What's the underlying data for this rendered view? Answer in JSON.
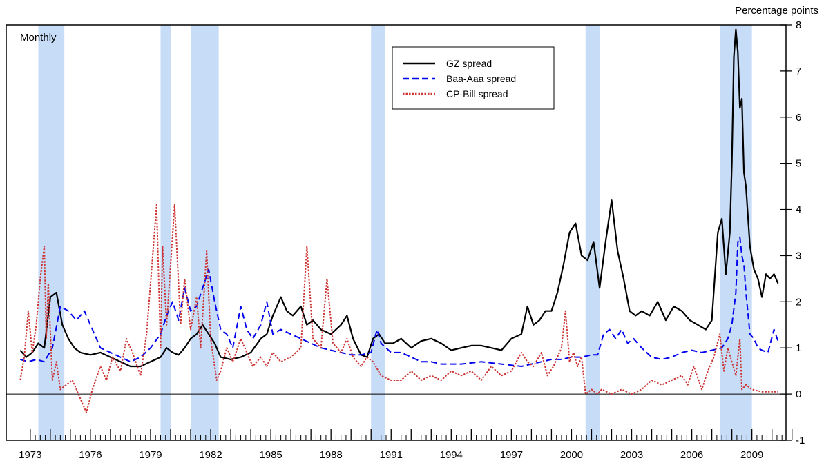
{
  "chart_data": {
    "type": "line",
    "frequency_label": "Monthly",
    "ylabel": "Percentage points",
    "xlim": [
      1972.3,
      2011.2
    ],
    "ylim": [
      -1,
      8
    ],
    "y_ticks": [
      -1,
      0,
      1,
      2,
      3,
      4,
      5,
      6,
      7,
      8
    ],
    "x_tick_labels": [
      "1973",
      "1976",
      "1979",
      "1982",
      "1985",
      "1988",
      "1991",
      "1994",
      "1997",
      "2000",
      "2003",
      "2006",
      "2009"
    ],
    "recessions": [
      [
        1973.9,
        1975.2
      ],
      [
        1980.0,
        1980.5
      ],
      [
        1981.5,
        1982.9
      ],
      [
        1990.5,
        1991.2
      ],
      [
        2001.2,
        2001.9
      ],
      [
        2007.9,
        2009.5
      ]
    ],
    "grid": false,
    "legend_position": "top-right",
    "series": [
      {
        "name": "GZ spread",
        "color": "#000000",
        "style": "solid",
        "x": [
          1973.0,
          1973.3,
          1973.6,
          1973.9,
          1974.2,
          1974.5,
          1974.8,
          1975.1,
          1975.4,
          1975.7,
          1976.0,
          1976.5,
          1977.0,
          1977.5,
          1978.0,
          1978.5,
          1979.0,
          1979.5,
          1980.0,
          1980.3,
          1980.6,
          1980.9,
          1981.2,
          1981.5,
          1981.8,
          1982.1,
          1982.4,
          1982.7,
          1983.0,
          1983.5,
          1984.0,
          1984.5,
          1985.0,
          1985.3,
          1985.6,
          1986.0,
          1986.3,
          1986.6,
          1987.0,
          1987.3,
          1987.6,
          1988.0,
          1988.5,
          1989.0,
          1989.3,
          1989.6,
          1990.0,
          1990.3,
          1990.6,
          1990.9,
          1991.2,
          1991.6,
          1992.0,
          1992.5,
          1993.0,
          1993.5,
          1994.0,
          1994.5,
          1995.0,
          1995.5,
          1996.0,
          1996.5,
          1997.0,
          1997.5,
          1998.0,
          1998.3,
          1998.6,
          1998.9,
          1999.2,
          1999.5,
          1999.8,
          2000.1,
          2000.4,
          2000.7,
          2001.0,
          2001.3,
          2001.6,
          2001.9,
          2002.2,
          2002.5,
          2002.8,
          2003.1,
          2003.4,
          2003.7,
          2004.0,
          2004.4,
          2004.8,
          2005.2,
          2005.6,
          2006.0,
          2006.4,
          2006.8,
          2007.2,
          2007.5,
          2007.8,
          2008.0,
          2008.2,
          2008.4,
          2008.5,
          2008.6,
          2008.7,
          2008.8,
          2008.9,
          2009.0,
          2009.1,
          2009.2,
          2009.4,
          2009.6,
          2009.8,
          2010.0,
          2010.2,
          2010.4,
          2010.6,
          2010.8
        ],
        "y": [
          0.95,
          0.8,
          0.9,
          1.1,
          1.0,
          2.1,
          2.2,
          1.5,
          1.2,
          1.0,
          0.9,
          0.85,
          0.9,
          0.8,
          0.7,
          0.6,
          0.6,
          0.7,
          0.8,
          1.0,
          0.9,
          0.85,
          1.0,
          1.2,
          1.3,
          1.5,
          1.3,
          1.1,
          0.8,
          0.75,
          0.8,
          0.9,
          1.2,
          1.3,
          1.7,
          2.1,
          1.8,
          1.7,
          1.9,
          1.5,
          1.6,
          1.4,
          1.3,
          1.5,
          1.7,
          1.2,
          0.85,
          0.8,
          1.2,
          1.3,
          1.1,
          1.1,
          1.2,
          1.0,
          1.15,
          1.2,
          1.1,
          0.95,
          1.0,
          1.05,
          1.05,
          1.0,
          0.95,
          1.2,
          1.3,
          1.9,
          1.5,
          1.6,
          1.8,
          1.8,
          2.2,
          2.8,
          3.5,
          3.7,
          3.0,
          2.9,
          3.3,
          2.3,
          3.3,
          4.2,
          3.1,
          2.5,
          1.8,
          1.7,
          1.8,
          1.7,
          2.0,
          1.6,
          1.9,
          1.8,
          1.6,
          1.5,
          1.4,
          1.6,
          3.5,
          3.8,
          2.6,
          3.5,
          5.0,
          7.3,
          7.9,
          7.4,
          6.2,
          6.4,
          4.8,
          4.5,
          3.2,
          2.7,
          2.5,
          2.1,
          2.6,
          2.5,
          2.6,
          2.4
        ]
      },
      {
        "name": "Baa-Aaa spread",
        "color": "#0000ee",
        "style": "dashed",
        "x": [
          1973.0,
          1973.4,
          1973.8,
          1974.2,
          1974.6,
          1975.0,
          1975.4,
          1975.8,
          1976.2,
          1976.6,
          1977.0,
          1977.5,
          1978.0,
          1978.5,
          1979.0,
          1979.5,
          1980.0,
          1980.3,
          1980.6,
          1980.9,
          1981.2,
          1981.5,
          1981.8,
          1982.1,
          1982.4,
          1982.7,
          1983.0,
          1983.3,
          1983.6,
          1984.0,
          1984.3,
          1984.6,
          1985.0,
          1985.3,
          1985.6,
          1986.0,
          1986.5,
          1987.0,
          1987.5,
          1988.0,
          1988.5,
          1989.0,
          1989.5,
          1990.0,
          1990.5,
          1990.8,
          1991.0,
          1991.5,
          1992.0,
          1992.5,
          1993.0,
          1993.5,
          1994.0,
          1995.0,
          1996.0,
          1997.0,
          1998.0,
          1998.5,
          1999.0,
          1999.5,
          2000.0,
          2000.5,
          2001.0,
          2001.5,
          2001.8,
          2002.1,
          2002.4,
          2002.7,
          2003.0,
          2003.3,
          2003.6,
          2004.0,
          2004.5,
          2005.0,
          2005.5,
          2006.0,
          2006.5,
          2007.0,
          2007.5,
          2008.0,
          2008.3,
          2008.5,
          2008.7,
          2008.8,
          2008.9,
          2009.0,
          2009.1,
          2009.2,
          2009.4,
          2009.6,
          2009.8,
          2010.0,
          2010.3,
          2010.6,
          2010.8
        ],
        "y": [
          0.75,
          0.7,
          0.75,
          0.7,
          1.0,
          1.9,
          1.8,
          1.6,
          1.8,
          1.4,
          1.0,
          0.9,
          0.8,
          0.7,
          0.8,
          1.0,
          1.3,
          1.7,
          2.0,
          1.6,
          2.3,
          1.8,
          1.9,
          2.3,
          2.7,
          2.0,
          1.4,
          1.3,
          1.0,
          1.9,
          1.4,
          1.2,
          1.5,
          2.0,
          1.3,
          1.4,
          1.3,
          1.2,
          1.1,
          1.0,
          0.95,
          0.9,
          0.85,
          0.85,
          0.9,
          1.4,
          1.1,
          0.9,
          0.9,
          0.8,
          0.7,
          0.7,
          0.65,
          0.65,
          0.7,
          0.65,
          0.6,
          0.65,
          0.7,
          0.75,
          0.75,
          0.8,
          0.8,
          0.85,
          0.85,
          1.3,
          1.4,
          1.2,
          1.4,
          1.1,
          1.2,
          1.0,
          0.8,
          0.75,
          0.8,
          0.9,
          0.95,
          0.9,
          0.95,
          1.0,
          1.2,
          1.5,
          2.2,
          3.3,
          3.4,
          3.0,
          2.8,
          2.2,
          1.3,
          1.2,
          1.0,
          0.95,
          0.9,
          1.4,
          1.15
        ]
      },
      {
        "name": "CP-Bill spread",
        "color": "#cc3333",
        "style": "dotted",
        "x": [
          1973.0,
          1973.2,
          1973.4,
          1973.6,
          1973.8,
          1974.0,
          1974.2,
          1974.3,
          1974.4,
          1974.6,
          1974.8,
          1975.0,
          1975.3,
          1975.6,
          1976.0,
          1976.3,
          1976.6,
          1977.0,
          1977.3,
          1977.6,
          1978.0,
          1978.3,
          1978.6,
          1979.0,
          1979.3,
          1979.5,
          1979.8,
          1980.0,
          1980.1,
          1980.3,
          1980.5,
          1980.7,
          1981.0,
          1981.2,
          1981.5,
          1981.8,
          1982.0,
          1982.3,
          1982.5,
          1982.8,
          1983.0,
          1983.3,
          1983.6,
          1984.0,
          1984.3,
          1984.6,
          1985.0,
          1985.3,
          1985.6,
          1986.0,
          1986.5,
          1987.0,
          1987.3,
          1987.6,
          1988.0,
          1988.3,
          1988.6,
          1989.0,
          1989.3,
          1989.6,
          1990.0,
          1990.3,
          1990.6,
          1991.0,
          1991.5,
          1992.0,
          1992.5,
          1993.0,
          1993.5,
          1994.0,
          1994.5,
          1995.0,
          1995.5,
          1996.0,
          1996.5,
          1997.0,
          1997.5,
          1998.0,
          1998.3,
          1998.6,
          1999.0,
          1999.3,
          1999.6,
          2000.0,
          2000.2,
          2000.4,
          2000.6,
          2000.8,
          2001.0,
          2001.2,
          2001.5,
          2001.8,
          2002.0,
          2002.5,
          2003.0,
          2003.5,
          2004.0,
          2004.5,
          2005.0,
          2005.5,
          2006.0,
          2006.3,
          2006.6,
          2007.0,
          2007.3,
          2007.6,
          2007.9,
          2008.1,
          2008.3,
          2008.5,
          2008.7,
          2008.9,
          2009.0,
          2009.2,
          2009.5,
          2010.0,
          2010.5,
          2010.8
        ],
        "y": [
          0.3,
          0.8,
          1.8,
          0.9,
          1.5,
          2.5,
          3.2,
          1.2,
          2.4,
          0.3,
          0.7,
          0.1,
          0.2,
          0.3,
          -0.1,
          -0.4,
          0.1,
          0.6,
          0.3,
          0.8,
          0.5,
          1.2,
          0.9,
          0.4,
          1.3,
          2.4,
          4.1,
          1.0,
          3.2,
          1.5,
          2.8,
          4.1,
          1.5,
          2.5,
          1.4,
          2.1,
          1.0,
          3.1,
          1.2,
          0.3,
          0.5,
          1.0,
          0.7,
          1.2,
          0.9,
          0.6,
          0.8,
          0.6,
          0.9,
          0.7,
          0.8,
          1.0,
          3.2,
          1.2,
          1.0,
          2.5,
          1.1,
          0.9,
          1.2,
          0.8,
          0.6,
          0.8,
          0.7,
          0.4,
          0.3,
          0.3,
          0.5,
          0.3,
          0.4,
          0.3,
          0.5,
          0.4,
          0.5,
          0.3,
          0.6,
          0.4,
          0.5,
          0.9,
          0.7,
          0.6,
          0.9,
          0.4,
          0.6,
          1.0,
          1.8,
          0.7,
          0.9,
          0.6,
          0.8,
          0.0,
          0.1,
          0.0,
          0.1,
          0.0,
          0.1,
          0.0,
          0.1,
          0.3,
          0.2,
          0.3,
          0.4,
          0.2,
          0.6,
          0.1,
          0.5,
          0.8,
          1.3,
          0.5,
          1.0,
          0.7,
          0.4,
          1.2,
          0.1,
          0.2,
          0.1,
          0.05,
          0.05,
          0.05
        ]
      }
    ]
  }
}
